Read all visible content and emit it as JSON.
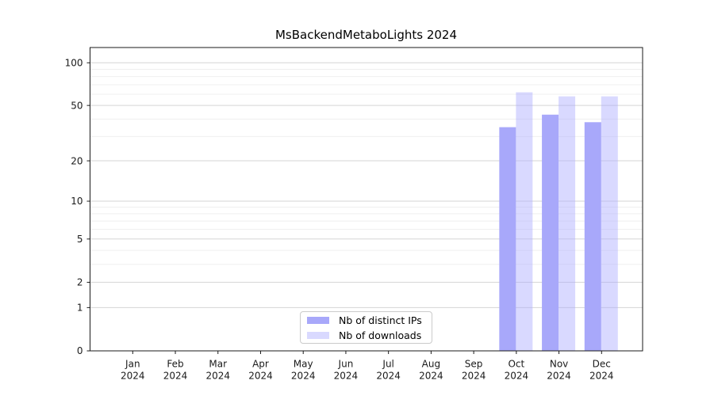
{
  "chart_data": {
    "type": "bar",
    "title": "MsBackendMetaboLights 2024",
    "categories": [
      "Jan 2024",
      "Feb 2024",
      "Mar 2024",
      "Apr 2024",
      "May 2024",
      "Jun 2024",
      "Jul 2024",
      "Aug 2024",
      "Sep 2024",
      "Oct 2024",
      "Nov 2024",
      "Dec 2024"
    ],
    "series": [
      {
        "name": "Nb of distinct IPs",
        "color": "#a8a8fa",
        "opacity": 1,
        "values": [
          null,
          null,
          null,
          null,
          null,
          null,
          null,
          null,
          null,
          35,
          43,
          38
        ]
      },
      {
        "name": "Nb of downloads",
        "color": "#aaaaff",
        "opacity": 0.45,
        "values": [
          null,
          null,
          null,
          null,
          null,
          null,
          null,
          null,
          null,
          62,
          58,
          58
        ]
      }
    ],
    "y_axis": {
      "scale": "log1p",
      "ylim": [
        0,
        128
      ],
      "major_ticks": [
        {
          "value": 0,
          "label": "0"
        },
        {
          "value": 1,
          "label": "1"
        },
        {
          "value": 2,
          "label": "2"
        },
        {
          "value": 5,
          "label": "5"
        },
        {
          "value": 10,
          "label": "10"
        },
        {
          "value": 20,
          "label": "20"
        },
        {
          "value": 50,
          "label": "50"
        },
        {
          "value": 100,
          "label": "100"
        }
      ],
      "minor_ticks": [
        3,
        4,
        6,
        7,
        8,
        9,
        30,
        40,
        60,
        70,
        80,
        90
      ]
    },
    "xlabel": "",
    "ylabel": "",
    "grid": true,
    "legend_position": "lower center",
    "colors": {
      "spine": "#1a1a1a",
      "tick_label": "#1a1a1a",
      "grid_major": "#d5d5d5",
      "grid_minor": "#efefef",
      "background": "#ffffff"
    }
  }
}
